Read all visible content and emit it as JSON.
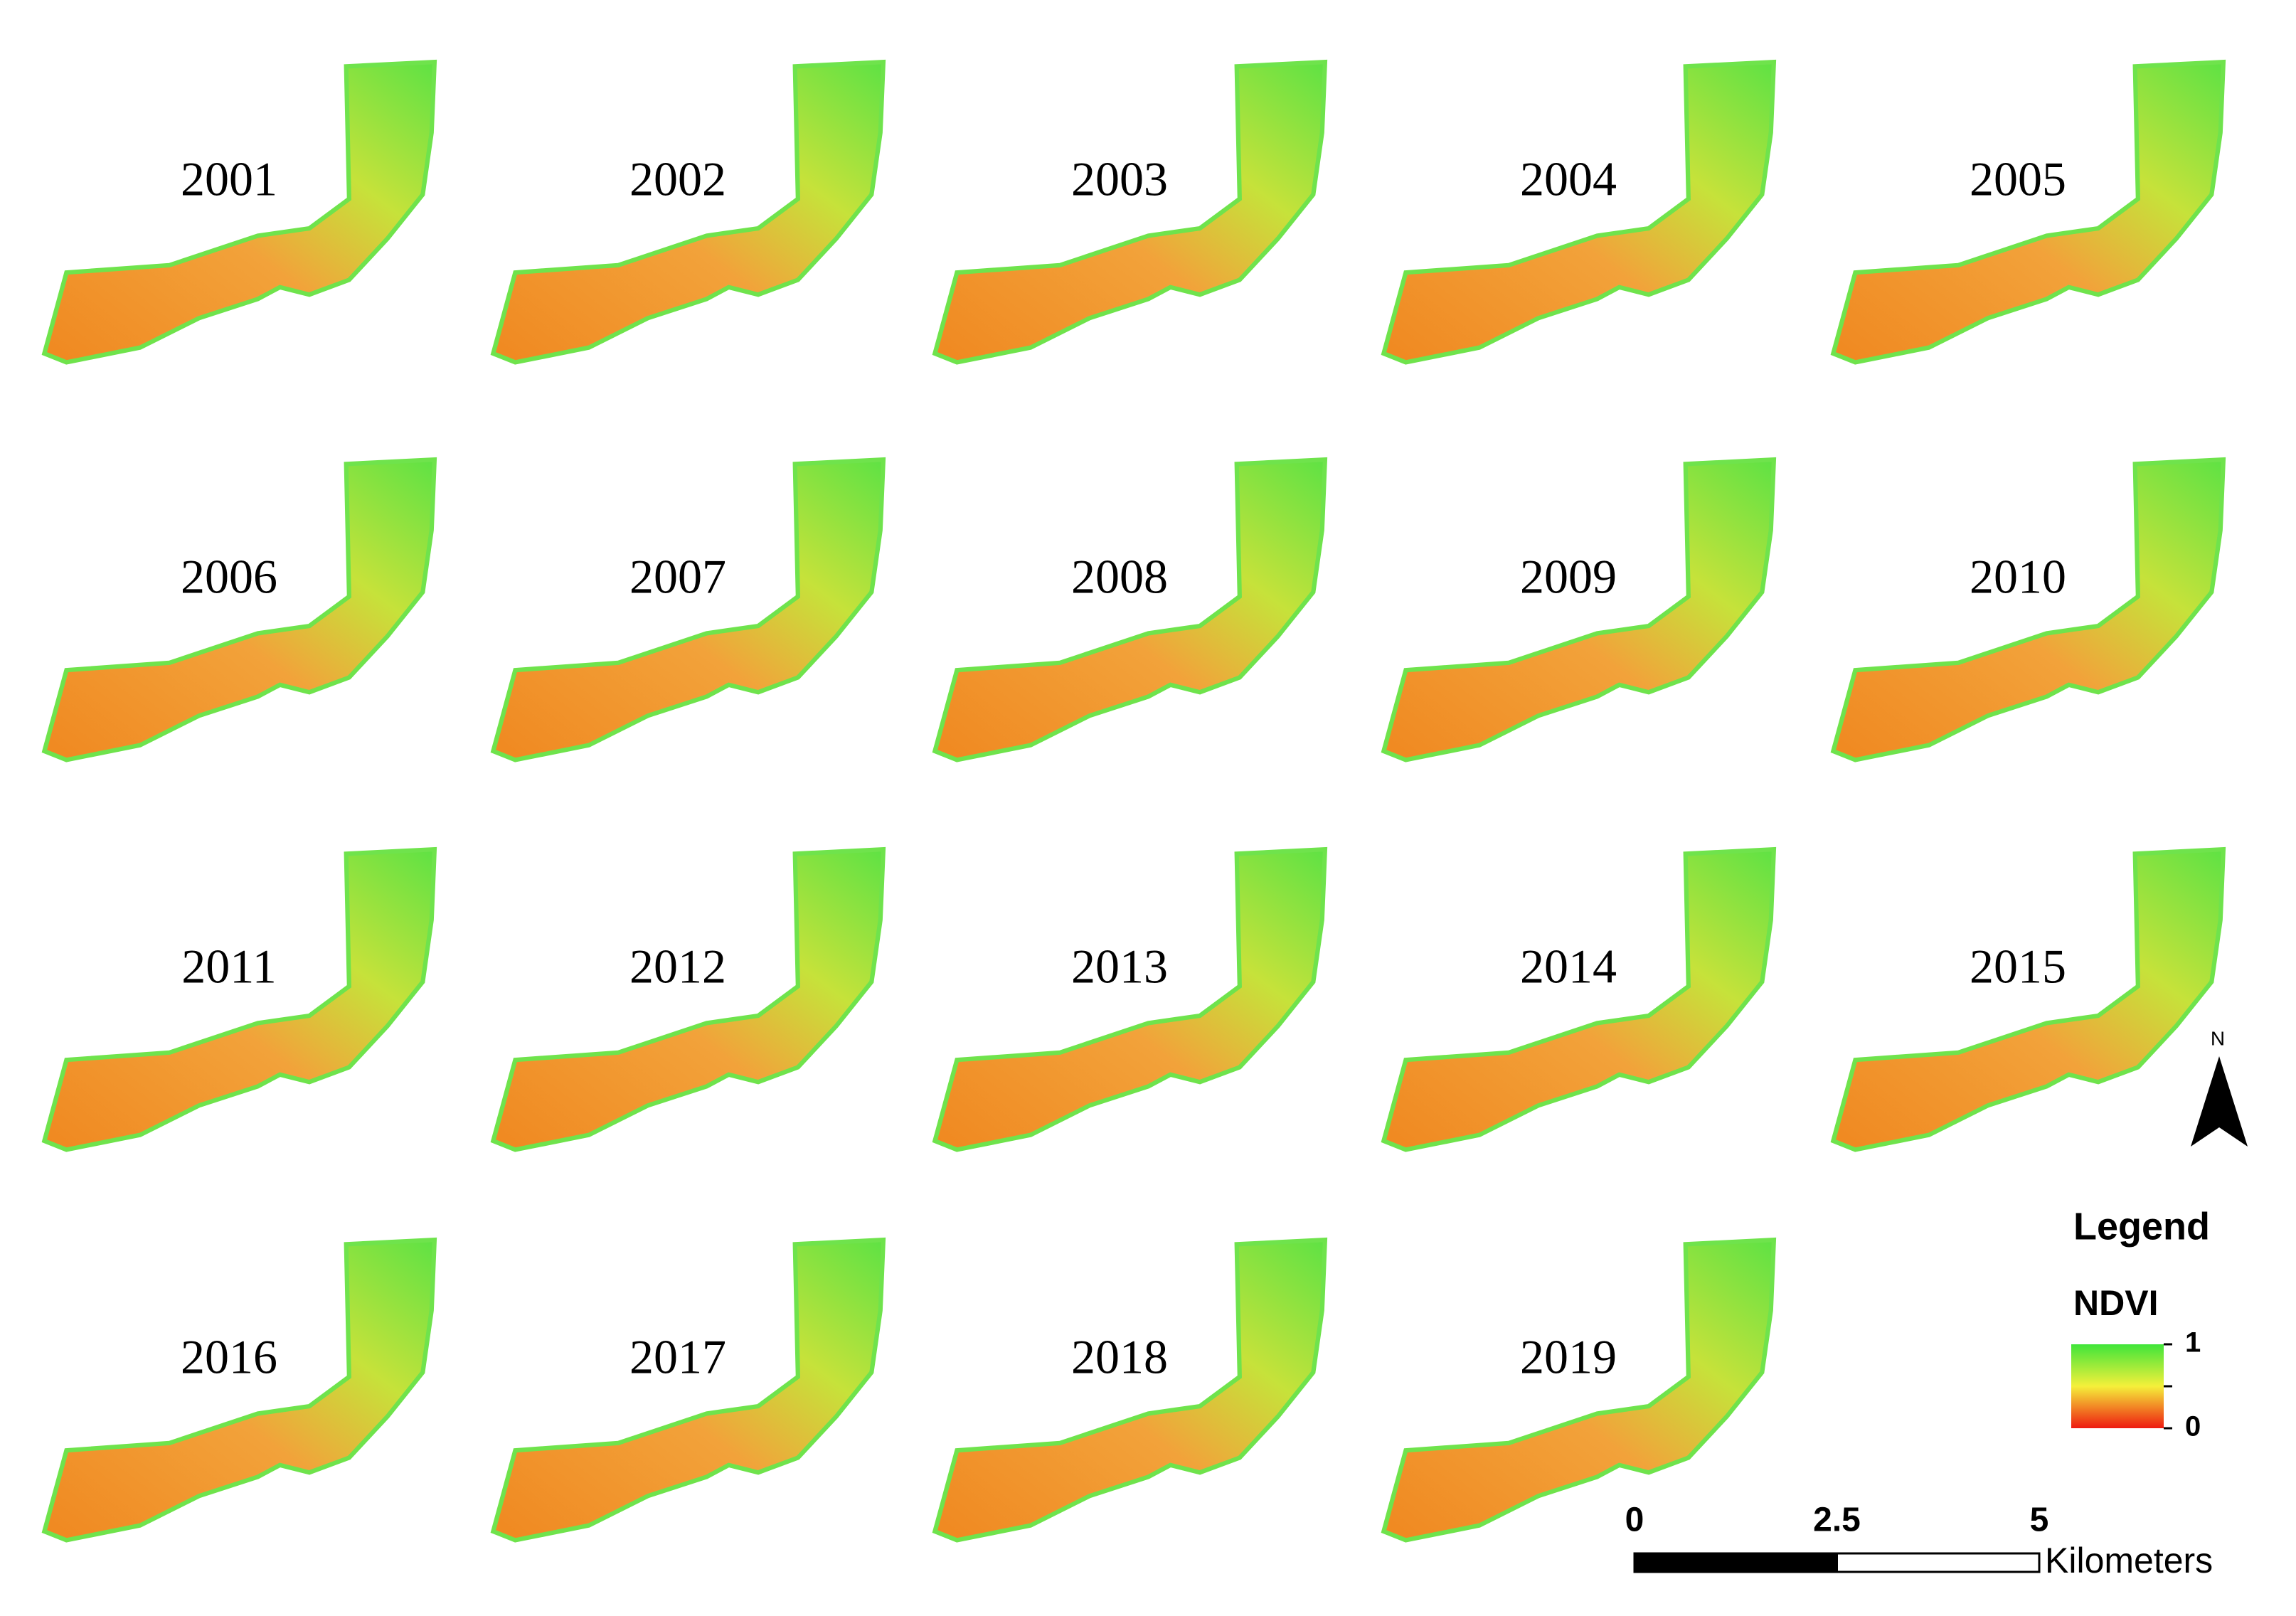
{
  "maps": [
    {
      "label": "2001"
    },
    {
      "label": "2002"
    },
    {
      "label": "2003"
    },
    {
      "label": "2004"
    },
    {
      "label": "2005"
    },
    {
      "label": "2006"
    },
    {
      "label": "2007"
    },
    {
      "label": "2008"
    },
    {
      "label": "2009"
    },
    {
      "label": "2010"
    },
    {
      "label": "2011"
    },
    {
      "label": "2012"
    },
    {
      "label": "2013"
    },
    {
      "label": "2014"
    },
    {
      "label": "2015"
    },
    {
      "label": "2016"
    },
    {
      "label": "2017"
    },
    {
      "label": "2018"
    },
    {
      "label": "2019"
    }
  ],
  "north_arrow": "N",
  "legend": {
    "title": "Legend",
    "variable": "NDVI",
    "ticks": [
      1,
      0
    ]
  },
  "scale_bar": {
    "ticks": [
      0,
      2.5,
      5
    ],
    "unit": "Kilometers"
  }
}
